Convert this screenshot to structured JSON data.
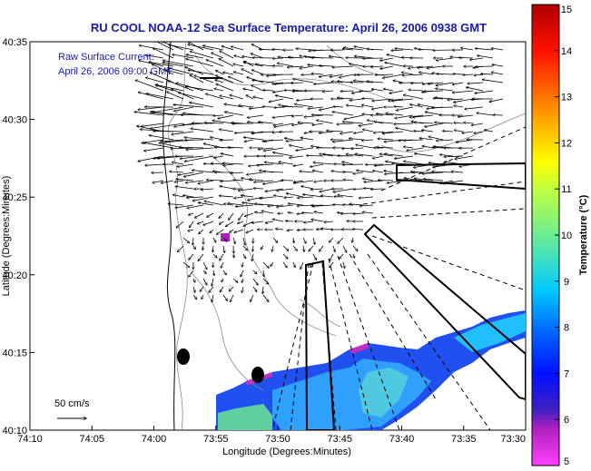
{
  "title": "RU COOL  NOAA-12  Sea Surface Temperature:  April 26, 2006 0938 GMT",
  "current_label_1": "Raw Surface Current:",
  "current_label_2": "April 26, 2006 09:00 GMT",
  "scale_label": "50 cm/s",
  "x_axis_label": "Longitude (Degrees:Minutes)",
  "y_axis_label": "Latitude (Degrees:Minutes)",
  "colorbar_label": "Temperature (°C)",
  "x_ticks": [
    "74:10",
    "74:05",
    "74:00",
    "73:55",
    "73:50",
    "73:45",
    "73:40",
    "73:35",
    "73:30"
  ],
  "y_ticks": [
    "40:35",
    "40:30",
    "40:25",
    "40:20",
    "40:15",
    "40:10"
  ],
  "colorbar_ticks": [
    "15",
    "14",
    "13",
    "12",
    "11",
    "10",
    "9",
    "8",
    "7",
    "6",
    "5"
  ],
  "colors": {
    "title": "#1a1aa6",
    "land_contour": "#888888",
    "vectors": "#000000"
  }
}
